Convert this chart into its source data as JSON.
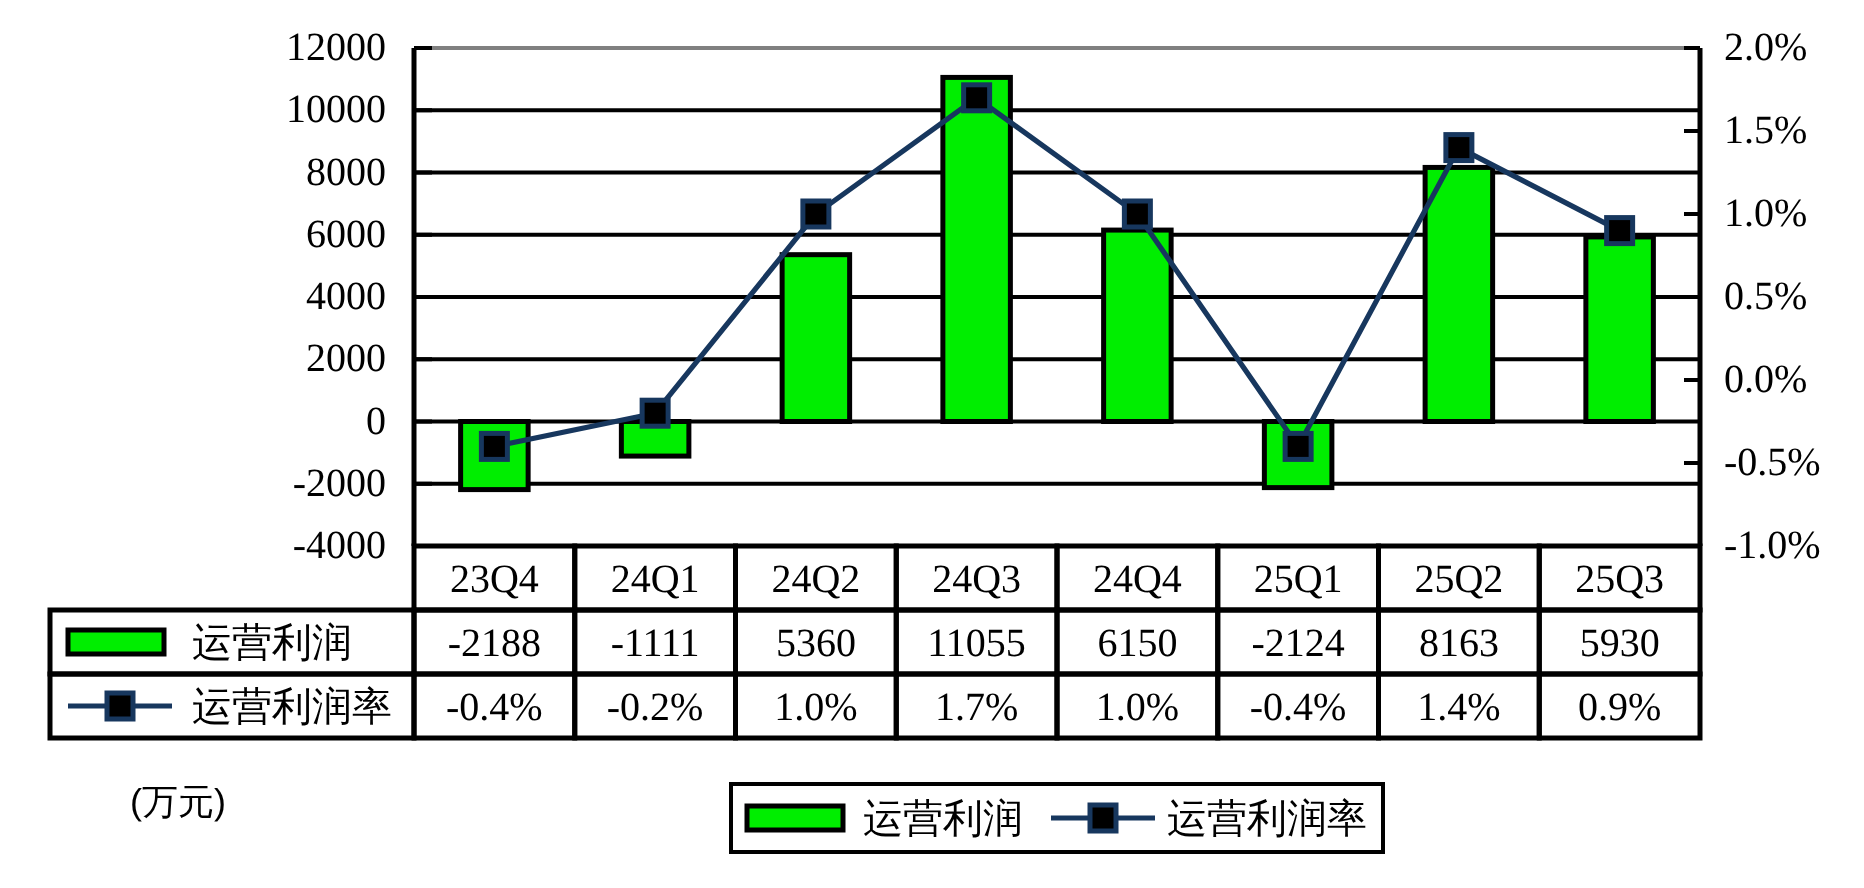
{
  "chart_data": {
    "type": "bar",
    "categories": [
      "23Q4",
      "24Q1",
      "24Q2",
      "24Q3",
      "24Q4",
      "25Q1",
      "25Q2",
      "25Q3"
    ],
    "series": [
      {
        "name": "运营利润",
        "color": "#00ee00",
        "values": [
          -2188,
          -1111,
          5360,
          11055,
          6150,
          -2124,
          8163,
          5930
        ],
        "value_labels": [
          "-2188",
          "-1111",
          "5360",
          "11055",
          "6150",
          "-2124",
          "8163",
          "5930"
        ]
      },
      {
        "name": "运营利润率",
        "type": "line",
        "axis": "y2",
        "color": "#17375e",
        "marker": "square",
        "values": [
          -0.4,
          -0.2,
          1.0,
          1.7,
          1.0,
          -0.4,
          1.4,
          0.9
        ],
        "value_labels": [
          "-0.4%",
          "-0.2%",
          "1.0%",
          "1.7%",
          "1.0%",
          "-0.4%",
          "1.4%",
          "0.9%"
        ]
      }
    ],
    "ylim": [
      -4000,
      12000
    ],
    "yticks": [
      -4000,
      -2000,
      0,
      2000,
      4000,
      6000,
      8000,
      10000,
      12000
    ],
    "y2lim": [
      -1.0,
      2.0
    ],
    "y2ticks": [
      {
        "value": -1.0,
        "label": "-1.0%"
      },
      {
        "value": -0.5,
        "label": "-0.5%"
      },
      {
        "value": 0.0,
        "label": "0.0%"
      },
      {
        "value": 0.5,
        "label": "0.5%"
      },
      {
        "value": 1.0,
        "label": "1.0%"
      },
      {
        "value": 1.5,
        "label": "1.5%"
      },
      {
        "value": 2.0,
        "label": "2.0%"
      }
    ],
    "grid": "y",
    "legend": "bottom",
    "annotations": [
      "(万元)"
    ]
  }
}
